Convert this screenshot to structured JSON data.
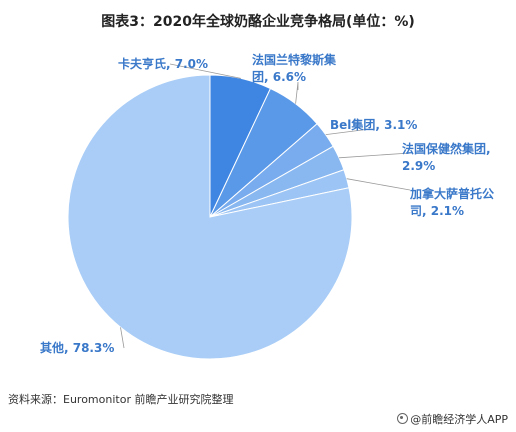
{
  "title": "图表3：2020年全球奶酪企业竞争格局(单位：%)",
  "source": "资料来源：Euromonitor 前瞻产业研究院整理",
  "brand": "@前瞻经济学人APP",
  "chart_data": {
    "type": "pie",
    "title": "图表3：2020年全球奶酪企业竞争格局(单位：%)",
    "unit": "%",
    "slices": [
      {
        "name": "卡夫亨氏",
        "value": 7.0,
        "color": "#3f86e3",
        "label": [
          "卡夫亨氏, 7.0%"
        ]
      },
      {
        "name": "法国兰特黎斯集团",
        "value": 6.6,
        "color": "#5a99e8",
        "label": [
          "法国兰特黎斯集",
          "团, 6.6%"
        ]
      },
      {
        "name": "Bel集团",
        "value": 3.1,
        "color": "#78acee",
        "label": [
          "Bel集团, 3.1%"
        ]
      },
      {
        "name": "法国保健然集团",
        "value": 2.9,
        "color": "#89b8f1",
        "label": [
          "法国保健然集团,",
          "2.9%"
        ]
      },
      {
        "name": "加拿大萨普托公司",
        "value": 2.1,
        "color": "#9cc4f4",
        "label": [
          "加拿大萨普托公",
          "司, 2.1%"
        ]
      },
      {
        "name": "其他",
        "value": 78.3,
        "color": "#a9cdf6",
        "label": [
          "其他, 78.3%"
        ]
      }
    ],
    "label_color": "#3a78c9",
    "legend": "none"
  }
}
